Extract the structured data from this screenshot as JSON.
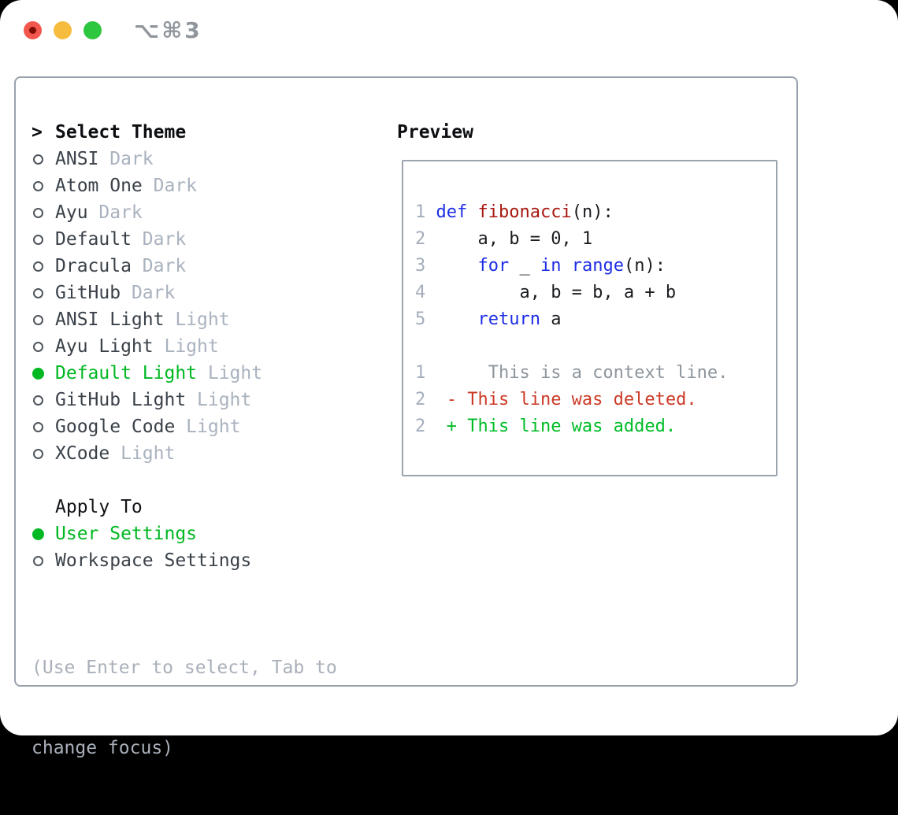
{
  "window": {
    "title": "⌥⌘3",
    "traffic_lights": [
      "close",
      "minimize",
      "zoom"
    ]
  },
  "colors": {
    "selected_green": "#00b822",
    "added_green": "#00bd27",
    "deleted_red": "#cb3a26",
    "keyword_blue": "#1d2de4",
    "function_red": "#a71810",
    "muted_gray": "#a9b2be",
    "context_gray": "#8d959d",
    "panel_border": "#98a2ad",
    "traffic_red": "#f2564c",
    "traffic_yellow": "#f6bc3e",
    "traffic_green": "#2dc63f"
  },
  "sidebar": {
    "header": {
      "prefix": ">",
      "label": "Select Theme"
    },
    "items": [
      {
        "name": "ANSI",
        "tag": "Dark",
        "selected": false
      },
      {
        "name": "Atom One",
        "tag": "Dark",
        "selected": false
      },
      {
        "name": "Ayu",
        "tag": "Dark",
        "selected": false
      },
      {
        "name": "Default",
        "tag": "Dark",
        "selected": false
      },
      {
        "name": "Dracula",
        "tag": "Dark",
        "selected": false
      },
      {
        "name": "GitHub",
        "tag": "Dark",
        "selected": false
      },
      {
        "name": "ANSI Light",
        "tag": "Light",
        "selected": false
      },
      {
        "name": "Ayu Light",
        "tag": "Light",
        "selected": false
      },
      {
        "name": "Default Light",
        "tag": "Light",
        "selected": true
      },
      {
        "name": "GitHub Light",
        "tag": "Light",
        "selected": false
      },
      {
        "name": "Google Code",
        "tag": "Light",
        "selected": false
      },
      {
        "name": "XCode",
        "tag": "Light",
        "selected": false
      }
    ],
    "apply_to": {
      "label": "Apply To",
      "options": [
        {
          "label": "User Settings",
          "selected": true
        },
        {
          "label": "Workspace Settings",
          "selected": false
        }
      ]
    },
    "hint_lines": [
      "(Use Enter to select, Tab to",
      "change focus)"
    ]
  },
  "preview": {
    "title": "Preview",
    "lines": [
      {
        "segs": [
          {
            "text": "1 ",
            "style": "num"
          },
          {
            "text": "def",
            "style": "kw"
          },
          {
            "text": " ",
            "style": "plain"
          },
          {
            "text": "fibonacci",
            "style": "fn"
          },
          {
            "text": "(n):",
            "style": "plain"
          }
        ]
      },
      {
        "segs": [
          {
            "text": "2",
            "style": "num"
          },
          {
            "text": "     a, b = 0, 1",
            "style": "plain"
          }
        ]
      },
      {
        "segs": [
          {
            "text": "3",
            "style": "num"
          },
          {
            "text": "     ",
            "style": "plain"
          },
          {
            "text": "for",
            "style": "kw"
          },
          {
            "text": " _ ",
            "style": "plain"
          },
          {
            "text": "in",
            "style": "kw"
          },
          {
            "text": " ",
            "style": "plain"
          },
          {
            "text": "range",
            "style": "kw"
          },
          {
            "text": "(n):",
            "style": "plain"
          }
        ]
      },
      {
        "segs": [
          {
            "text": "4",
            "style": "num"
          },
          {
            "text": "         a, b = b, a + b",
            "style": "plain"
          }
        ]
      },
      {
        "segs": [
          {
            "text": "5",
            "style": "num"
          },
          {
            "text": "     ",
            "style": "plain"
          },
          {
            "text": "return",
            "style": "kw"
          },
          {
            "text": " a",
            "style": "plain"
          }
        ]
      },
      {
        "segs": []
      },
      {
        "segs": [
          {
            "text": "1",
            "style": "num"
          },
          {
            "text": "      This is a context line.",
            "style": "ctx"
          }
        ]
      },
      {
        "segs": [
          {
            "text": "2",
            "style": "num"
          },
          {
            "text": "  - This line was deleted.",
            "style": "del"
          }
        ]
      },
      {
        "segs": [
          {
            "text": "2",
            "style": "num"
          },
          {
            "text": "  + This line was added.",
            "style": "add"
          }
        ]
      }
    ]
  }
}
